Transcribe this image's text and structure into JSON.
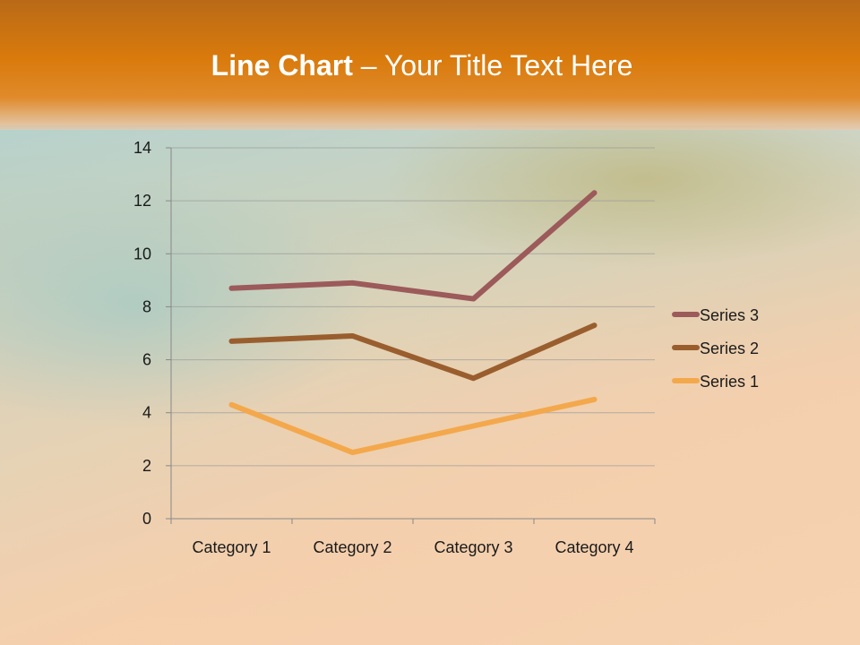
{
  "slide": {
    "title_bold": "Line Chart",
    "title_rest": " – Your Title Text Here"
  },
  "chart_data": {
    "type": "line",
    "title": "",
    "xlabel": "",
    "ylabel": "",
    "categories": [
      "Category 1",
      "Category 2",
      "Category 3",
      "Category 4"
    ],
    "ylim": [
      0,
      14
    ],
    "yticks": [
      0,
      2,
      4,
      6,
      8,
      10,
      12,
      14
    ],
    "grid": true,
    "legend": "right",
    "series": [
      {
        "name": "Series 1",
        "values": [
          4.3,
          2.5,
          3.5,
          4.5
        ],
        "color": "#f4a84c"
      },
      {
        "name": "Series 2",
        "values": [
          6.7,
          6.9,
          5.3,
          7.3
        ],
        "color": "#9a5e2e"
      },
      {
        "name": "Series 3",
        "values": [
          8.7,
          8.9,
          8.3,
          12.3
        ],
        "color": "#9c5a5a"
      }
    ]
  }
}
